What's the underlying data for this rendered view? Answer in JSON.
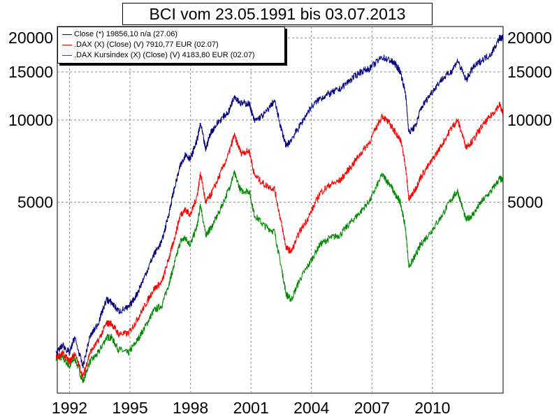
{
  "chart_data": {
    "type": "line",
    "title": "BCI vom 23.05.1991 bis 03.07.2013",
    "xlabel": "",
    "ylabel": "",
    "y_scale": "log",
    "ylim": [
      1000,
      22000
    ],
    "xlim": [
      "1991-05-23",
      "2013-07-03"
    ],
    "x_ticks": [
      "1992",
      "1995",
      "1998",
      "2001",
      "2004",
      "2007",
      "2010"
    ],
    "y_ticks": [
      20000,
      15000,
      10000,
      5000
    ],
    "y_tick_labels": [
      "20000",
      "15000",
      "10000",
      "5000"
    ],
    "grid": true,
    "legend_position": "top-left",
    "series": [
      {
        "name": "Close (*) 19856,10 n/a (27.06)",
        "color": "#00007f",
        "x": [
          "1991-05",
          "1991-09",
          "1992-01",
          "1992-04",
          "1992-09",
          "1993-01",
          "1993-06",
          "1993-11",
          "1994-02",
          "1994-06",
          "1994-12",
          "1995-05",
          "1995-10",
          "1996-03",
          "1996-08",
          "1996-12",
          "1997-03",
          "1997-07",
          "1997-10",
          "1998-01",
          "1998-05",
          "1998-07",
          "1998-10",
          "1999-01",
          "1999-06",
          "1999-12",
          "2000-03",
          "2000-07",
          "2000-12",
          "2001-03",
          "2001-09",
          "2002-03",
          "2002-07",
          "2002-10",
          "2003-01",
          "2003-06",
          "2003-12",
          "2004-06",
          "2004-12",
          "2005-06",
          "2005-12",
          "2006-06",
          "2006-12",
          "2007-07",
          "2007-12",
          "2008-03",
          "2008-06",
          "2008-09",
          "2008-11",
          "2009-03",
          "2009-06",
          "2009-12",
          "2010-06",
          "2010-12",
          "2011-04",
          "2011-09",
          "2012-01",
          "2012-06",
          "2012-12",
          "2013-05",
          "2013-07"
        ],
        "values": [
          1400,
          1500,
          1400,
          1600,
          1250,
          1600,
          1800,
          2200,
          2150,
          2000,
          2050,
          2300,
          2700,
          3200,
          3600,
          4500,
          5500,
          6800,
          7500,
          7200,
          8500,
          9700,
          7800,
          9000,
          9900,
          10800,
          12300,
          11500,
          11500,
          9900,
          10500,
          11800,
          9300,
          8000,
          8500,
          9500,
          11000,
          12000,
          12500,
          13000,
          14000,
          15000,
          15500,
          17000,
          16500,
          16000,
          15000,
          12500,
          9000,
          9500,
          11000,
          12500,
          14000,
          15000,
          16500,
          14000,
          15500,
          16500,
          17500,
          20000,
          19900
        ]
      },
      {
        "name": ".DAX (X) (Close) (V) 7910,77 EUR (02.07)",
        "color": "#ff0000",
        "x": [
          "1991-05",
          "1991-09",
          "1992-01",
          "1992-04",
          "1992-09",
          "1993-01",
          "1993-06",
          "1993-11",
          "1994-02",
          "1994-06",
          "1994-12",
          "1995-05",
          "1995-10",
          "1996-03",
          "1996-08",
          "1996-12",
          "1997-03",
          "1997-07",
          "1997-10",
          "1998-01",
          "1998-05",
          "1998-07",
          "1998-10",
          "1999-01",
          "1999-06",
          "1999-12",
          "2000-03",
          "2000-07",
          "2000-12",
          "2001-03",
          "2001-09",
          "2002-03",
          "2002-07",
          "2002-10",
          "2003-01",
          "2003-06",
          "2003-12",
          "2004-06",
          "2004-12",
          "2005-06",
          "2005-12",
          "2006-06",
          "2006-12",
          "2007-07",
          "2007-12",
          "2008-03",
          "2008-06",
          "2008-09",
          "2008-11",
          "2009-03",
          "2009-06",
          "2009-12",
          "2010-06",
          "2010-12",
          "2011-04",
          "2011-09",
          "2012-01",
          "2012-06",
          "2012-12",
          "2013-05",
          "2013-07"
        ],
        "values": [
          1350,
          1400,
          1300,
          1400,
          1150,
          1400,
          1550,
          1800,
          1800,
          1650,
          1650,
          1850,
          2100,
          2400,
          2550,
          3100,
          3600,
          4500,
          4700,
          4500,
          5300,
          6400,
          5000,
          5300,
          6200,
          7600,
          8800,
          7600,
          7700,
          6300,
          5800,
          5600,
          4200,
          3400,
          3300,
          3900,
          4500,
          5400,
          5800,
          6000,
          6700,
          7500,
          8400,
          10400,
          9600,
          9000,
          8500,
          6800,
          5100,
          5600,
          6200,
          7000,
          8000,
          9300,
          10000,
          8000,
          8400,
          9400,
          10400,
          11400,
          10500
        ]
      },
      {
        "name": ".DAX Kursindex (X) (Close) (V) 4183,80 EUR (02.07)",
        "color": "#008800",
        "x": [
          "1991-05",
          "1991-09",
          "1992-01",
          "1992-04",
          "1992-09",
          "1993-01",
          "1993-06",
          "1993-11",
          "1994-02",
          "1994-06",
          "1994-12",
          "1995-05",
          "1995-10",
          "1996-03",
          "1996-08",
          "1996-12",
          "1997-03",
          "1997-07",
          "1997-10",
          "1998-01",
          "1998-05",
          "1998-07",
          "1998-10",
          "1999-01",
          "1999-06",
          "1999-12",
          "2000-03",
          "2000-07",
          "2000-12",
          "2001-03",
          "2001-09",
          "2002-03",
          "2002-07",
          "2002-10",
          "2003-01",
          "2003-06",
          "2003-12",
          "2004-06",
          "2004-12",
          "2005-06",
          "2005-12",
          "2006-06",
          "2006-12",
          "2007-07",
          "2007-12",
          "2008-03",
          "2008-06",
          "2008-09",
          "2008-11",
          "2009-03",
          "2009-06",
          "2009-12",
          "2010-06",
          "2010-12",
          "2011-04",
          "2011-09",
          "2012-01",
          "2012-06",
          "2012-12",
          "2013-05",
          "2013-07"
        ],
        "values": [
          1350,
          1350,
          1250,
          1350,
          1100,
          1300,
          1400,
          1600,
          1600,
          1450,
          1400,
          1550,
          1750,
          2000,
          2100,
          2500,
          2900,
          3600,
          3700,
          3500,
          4100,
          4900,
          3800,
          4000,
          4600,
          5600,
          6400,
          5500,
          5500,
          4500,
          4100,
          3900,
          2900,
          2300,
          2200,
          2600,
          3000,
          3500,
          3700,
          3800,
          4200,
          4600,
          5100,
          6300,
          5800,
          5300,
          5000,
          4000,
          2900,
          3200,
          3500,
          3900,
          4400,
          5100,
          5500,
          4300,
          4500,
          5000,
          5500,
          6100,
          6000
        ]
      }
    ]
  }
}
